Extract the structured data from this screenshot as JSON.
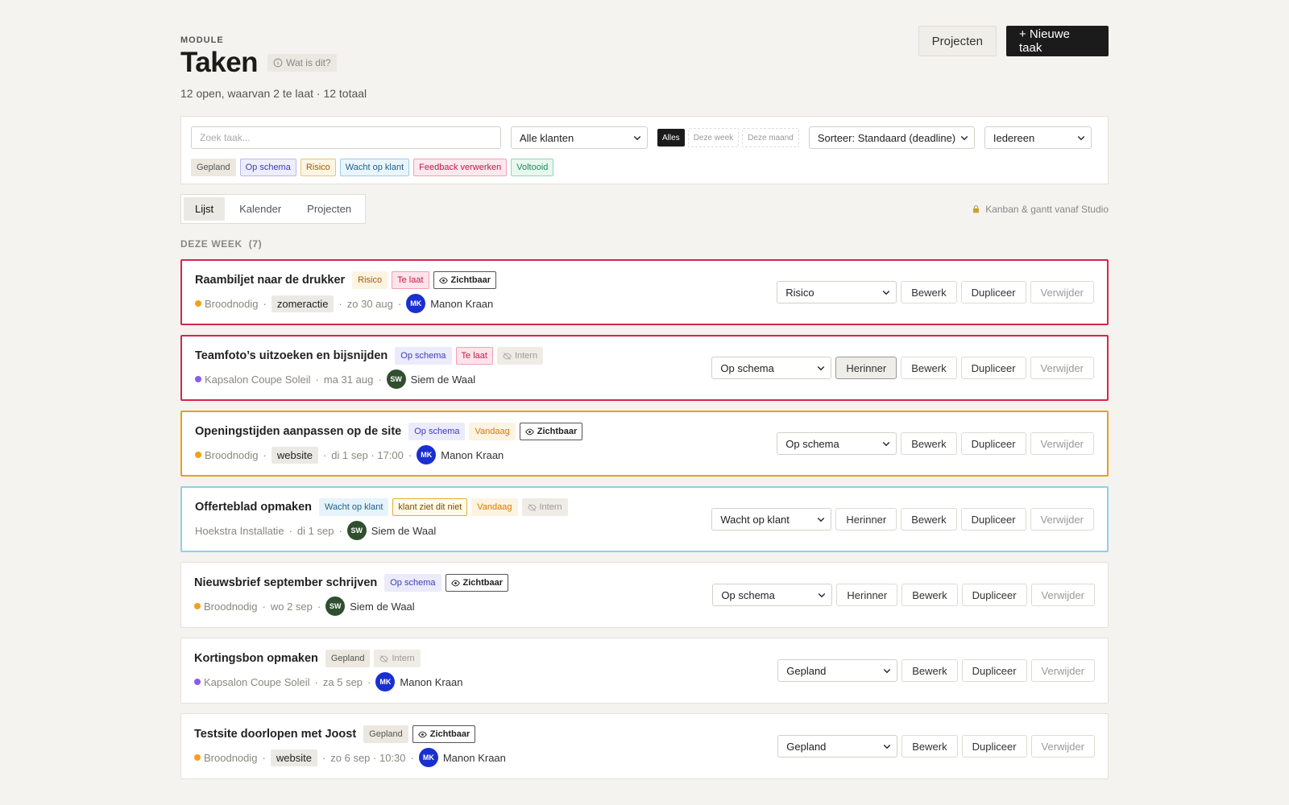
{
  "header": {
    "eyebrow": "MODULE",
    "title": "Taken",
    "help": "Wat is dit?",
    "summary": "12 open, waarvan 2 te laat · 12 totaal",
    "buttons": [
      "Projecten",
      "+ Nieuwe taak"
    ]
  },
  "filters": {
    "search_placeholder": "Zoek taak...",
    "client": "Alle klanten",
    "periods": [
      "Alles",
      "Deze week",
      "Deze maand"
    ],
    "sort": "Sorteer: Standaard (deadline)",
    "person": "Iedereen",
    "statuses": [
      {
        "text": "Gepland",
        "color": "#555",
        "background": "#ece8df",
        "border": "#ece8df"
      },
      {
        "text": "Op schema",
        "color": "#3d3db5",
        "background": "#ededfc",
        "border": "#b9b9ee"
      },
      {
        "text": "Risico",
        "color": "#a65a00",
        "background": "#fdf5e3",
        "border": "#ecc57a"
      },
      {
        "text": "Wacht op klant",
        "color": "#1f5f8a",
        "background": "#eaf5fb",
        "border": "#9fcde6"
      },
      {
        "text": "Feedback verwerken",
        "color": "#c2184a",
        "background": "#fde8ee",
        "border": "#efa3b6"
      },
      {
        "text": "Voltooid",
        "color": "#1e8a5a",
        "background": "#e8f8ef",
        "border": "#92d6b2"
      }
    ]
  },
  "tabs": {
    "items": [
      "Lijst",
      "Kalender",
      "Projecten"
    ],
    "upsell": "Kanban & gantt vanaf Studio"
  },
  "section": {
    "label": "DEZE WEEK",
    "count": "(7)"
  },
  "separator": "·",
  "tasks": [
    {
      "title": "Raambiljet naar de drukker",
      "border": "#d6254d",
      "badges": [
        {
          "text": "Risico",
          "color": "#a65a00",
          "background": "#fdf3e1",
          "border": "#fdf3e1"
        },
        {
          "text": "Te laat",
          "color": "#c9184a",
          "background": "#fde4ea",
          "border": "#f0a0b4"
        },
        {
          "text": "Zichtbaar",
          "icon": "eye",
          "color": "#222",
          "background": "#fff",
          "border": "#555"
        }
      ],
      "client": "Broodnodig",
      "dot": "#f2a01e",
      "tag": "zomeractie",
      "date": "zo 30 aug",
      "initials": "MK",
      "avatar": "#1a2fd0",
      "person": "Manon Kraan",
      "status": "Risico",
      "actions": [
        "Bewerk",
        "Dupliceer",
        "Verwijder"
      ]
    },
    {
      "title": "Teamfoto’s uitzoeken en bijsnijden",
      "border": "#d6254d",
      "badges": [
        {
          "text": "Op schema",
          "color": "#3d3db5",
          "background": "#ebebfb",
          "border": "#ebebfb"
        },
        {
          "text": "Te laat",
          "color": "#c9184a",
          "background": "#fde4ea",
          "border": "#f0a0b4"
        },
        {
          "text": "Intern",
          "icon": "eye-off",
          "color": "#999",
          "background": "#efece6",
          "border": "#efece6"
        }
      ],
      "client": "Kapsalon Coupe Soleil",
      "dot": "#8a5cf0",
      "date": "ma 31 aug",
      "initials": "SW",
      "avatar": "#2f4f2f",
      "person": "Siem de Waal",
      "status": "Op schema",
      "actions": [
        "Herinner",
        "Bewerk",
        "Dupliceer",
        "Verwijder"
      ]
    },
    {
      "title": "Openingstijden aanpassen op de site",
      "border": "#e8a020",
      "badges": [
        {
          "text": "Op schema",
          "color": "#3d3db5",
          "background": "#ebebfb",
          "border": "#ebebfb"
        },
        {
          "text": "Vandaag",
          "color": "#d97a00",
          "background": "#fdf3e1",
          "border": "#fdf3e1"
        },
        {
          "text": "Zichtbaar",
          "icon": "eye",
          "color": "#222",
          "background": "#fff",
          "border": "#555"
        }
      ],
      "client": "Broodnodig",
      "dot": "#f2a01e",
      "tag": "website",
      "date": "di 1 sep · 17:00",
      "initials": "MK",
      "avatar": "#1a2fd0",
      "person": "Manon Kraan",
      "status": "Op schema",
      "actions": [
        "Bewerk",
        "Dupliceer",
        "Verwijder"
      ]
    },
    {
      "title": "Offerteblad opmaken",
      "border": "#8fd0e8",
      "badges": [
        {
          "text": "Wacht op klant",
          "color": "#1f5f8a",
          "background": "#e6f3fa",
          "border": "#e6f3fa"
        },
        {
          "text": "klant ziet dit niet",
          "color": "#7a4a00",
          "background": "#fffbea",
          "border": "#e0b030"
        },
        {
          "text": "Vandaag",
          "color": "#d97a00",
          "background": "#fdf3e1",
          "border": "#fdf3e1"
        },
        {
          "text": "Intern",
          "icon": "eye-off",
          "color": "#999",
          "background": "#efece6",
          "border": "#efece6"
        }
      ],
      "client": "Hoekstra Installatie",
      "date": "di 1 sep",
      "initials": "SW",
      "avatar": "#2f4f2f",
      "person": "Siem de Waal",
      "status": "Wacht op klant",
      "actions": [
        "Herinner",
        "Bewerk",
        "Dupliceer",
        "Verwijder"
      ]
    },
    {
      "title": "Nieuwsbrief september schrijven",
      "border": "#e4e1da",
      "badges": [
        {
          "text": "Op schema",
          "color": "#3d3db5",
          "background": "#ebebfb",
          "border": "#ebebfb"
        },
        {
          "text": "Zichtbaar",
          "icon": "eye",
          "color": "#222",
          "background": "#fff",
          "border": "#555"
        }
      ],
      "client": "Broodnodig",
      "dot": "#f2a01e",
      "date": "wo 2 sep",
      "initials": "SW",
      "avatar": "#2f4f2f",
      "person": "Siem de Waal",
      "status": "Op schema",
      "actions": [
        "Herinner",
        "Bewerk",
        "Dupliceer",
        "Verwijder"
      ]
    },
    {
      "title": "Kortingsbon opmaken",
      "border": "#e4e1da",
      "badges": [
        {
          "text": "Gepland",
          "color": "#555",
          "background": "#ece8df",
          "border": "#ece8df"
        },
        {
          "text": "Intern",
          "icon": "eye-off",
          "color": "#999",
          "background": "#efece6",
          "border": "#efece6"
        }
      ],
      "client": "Kapsalon Coupe Soleil",
      "dot": "#8a5cf0",
      "date": "za 5 sep",
      "initials": "MK",
      "avatar": "#1a2fd0",
      "person": "Manon Kraan",
      "status": "Gepland",
      "actions": [
        "Bewerk",
        "Dupliceer",
        "Verwijder"
      ]
    },
    {
      "title": "Testsite doorlopen met Joost",
      "border": "#e4e1da",
      "badges": [
        {
          "text": "Gepland",
          "color": "#555",
          "background": "#ece8df",
          "border": "#ece8df"
        },
        {
          "text": "Zichtbaar",
          "icon": "eye",
          "color": "#222",
          "background": "#fff",
          "border": "#555"
        }
      ],
      "client": "Broodnodig",
      "dot": "#f2a01e",
      "tag": "website",
      "date": "zo 6 sep · 10:30",
      "initials": "MK",
      "avatar": "#1a2fd0",
      "person": "Manon Kraan",
      "status": "Gepland",
      "actions": [
        "Bewerk",
        "Dupliceer",
        "Verwijder"
      ]
    }
  ]
}
